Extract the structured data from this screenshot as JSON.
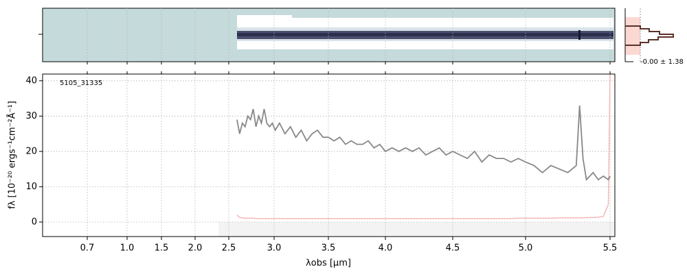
{
  "chart_data": {
    "type": "line",
    "annotation": "5105_31335",
    "xlabel": "λobs [µm]",
    "ylabel": "fλ [10⁻²⁰ ergs⁻¹cm⁻²Å⁻¹]",
    "side_label": "-0.00 ± 1.38",
    "xlim": [
      0.4,
      5.53
    ],
    "xticks": [
      0.7,
      {
        "value": 1.0,
        "label": "1.0"
      },
      1.5,
      {
        "value": 2.0,
        "label": "2.0"
      },
      2.5,
      {
        "value": 3.0,
        "label": "3.0"
      },
      3.5,
      {
        "value": 4.0,
        "label": "4.0"
      },
      4.5,
      {
        "value": 5.0,
        "label": "5.0"
      },
      5.5
    ],
    "ylim": [
      -4.1,
      41.9
    ],
    "yticks": [
      0,
      10,
      20,
      30,
      40
    ],
    "grid": true,
    "x": [
      2.59,
      2.62,
      2.65,
      2.68,
      2.71,
      2.74,
      2.77,
      2.8,
      2.83,
      2.86,
      2.89,
      2.92,
      2.95,
      2.98,
      3.01,
      3.05,
      3.1,
      3.15,
      3.2,
      3.25,
      3.3,
      3.35,
      3.4,
      3.45,
      3.5,
      3.55,
      3.6,
      3.65,
      3.7,
      3.75,
      3.8,
      3.85,
      3.9,
      3.95,
      4.0,
      4.05,
      4.1,
      4.15,
      4.2,
      4.25,
      4.3,
      4.35,
      4.4,
      4.45,
      4.5,
      4.55,
      4.6,
      4.65,
      4.7,
      4.75,
      4.8,
      4.85,
      4.9,
      4.95,
      5.0,
      5.05,
      5.1,
      5.15,
      5.2,
      5.25,
      5.3,
      5.32,
      5.34,
      5.36,
      5.4,
      5.43,
      5.46,
      5.49,
      5.5
    ],
    "series": [
      {
        "color": "#888888",
        "values": [
          29,
          25,
          28,
          27,
          30,
          29,
          32,
          27,
          30,
          28,
          32,
          28,
          27,
          28,
          26,
          28,
          25,
          27,
          24,
          26,
          23,
          25,
          26,
          24,
          24,
          23,
          24,
          22,
          23,
          22,
          22,
          23,
          21,
          22,
          20,
          21,
          20,
          21,
          20,
          21,
          19,
          20,
          21,
          19,
          20,
          19,
          18,
          20,
          17,
          19,
          18,
          18,
          17,
          18,
          17,
          16,
          14,
          16,
          15,
          14,
          16,
          33,
          18,
          12,
          14,
          12,
          13,
          12,
          13
        ]
      },
      {
        "color": "#f4b8b8",
        "values": [
          2,
          1.3,
          1.2,
          1.1,
          1.1,
          1.1,
          1.1,
          1.0,
          1.0,
          1.0,
          1.0,
          1.0,
          1.0,
          1.0,
          1.0,
          1.0,
          1.0,
          1.0,
          1.0,
          1.0,
          1.0,
          1.0,
          1.0,
          1.0,
          1.0,
          1.0,
          1.0,
          1.0,
          1.0,
          1.0,
          1.0,
          1.0,
          1.0,
          1.0,
          1.0,
          1.0,
          1.0,
          1.0,
          1.0,
          1.0,
          1.0,
          1.0,
          1.0,
          1.0,
          1.0,
          1.0,
          1.0,
          1.0,
          1.0,
          1.0,
          1.0,
          1.0,
          1.0,
          1.1,
          1.1,
          1.1,
          1.1,
          1.1,
          1.2,
          1.2,
          1.2,
          1.2,
          1.2,
          1.3,
          1.3,
          1.4,
          1.6,
          5,
          42
        ]
      }
    ]
  }
}
